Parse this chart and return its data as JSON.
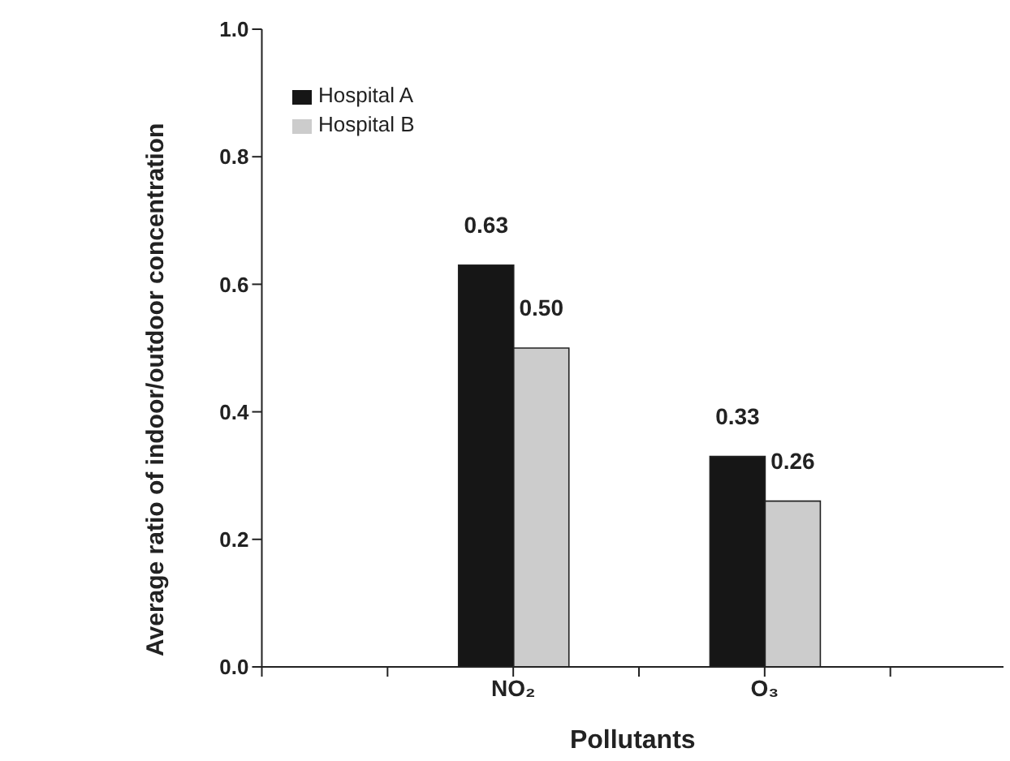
{
  "chart_data": {
    "type": "bar",
    "xlabel": "Pollutants",
    "ylabel": "Average ratio of indoor/outdoor concentration",
    "categories": [
      null,
      null,
      "NO₂",
      null,
      "O₃",
      null
    ],
    "series": [
      {
        "name": "Hospital A",
        "color": "#161616",
        "values": [
          null,
          null,
          0.63,
          null,
          0.33,
          null
        ],
        "value_labels": [
          null,
          null,
          "0.63",
          null,
          "0.33",
          null
        ]
      },
      {
        "name": "Hospital B",
        "color": "#cccccc",
        "values": [
          null,
          null,
          0.5,
          null,
          0.26,
          null
        ],
        "value_labels": [
          null,
          null,
          "0.50",
          null,
          "0.26",
          null
        ]
      }
    ],
    "ylim": [
      0,
      1
    ],
    "yticks": [
      {
        "value": 0,
        "label": "0.0"
      },
      {
        "value": 0.2,
        "label": "0.2"
      },
      {
        "value": 0.4,
        "label": "0.4"
      },
      {
        "value": 0.6,
        "label": "0.6"
      },
      {
        "value": 0.8,
        "label": "0.8"
      },
      {
        "value": 1,
        "label": "1.0"
      }
    ],
    "legend": "top left",
    "grid": false
  }
}
